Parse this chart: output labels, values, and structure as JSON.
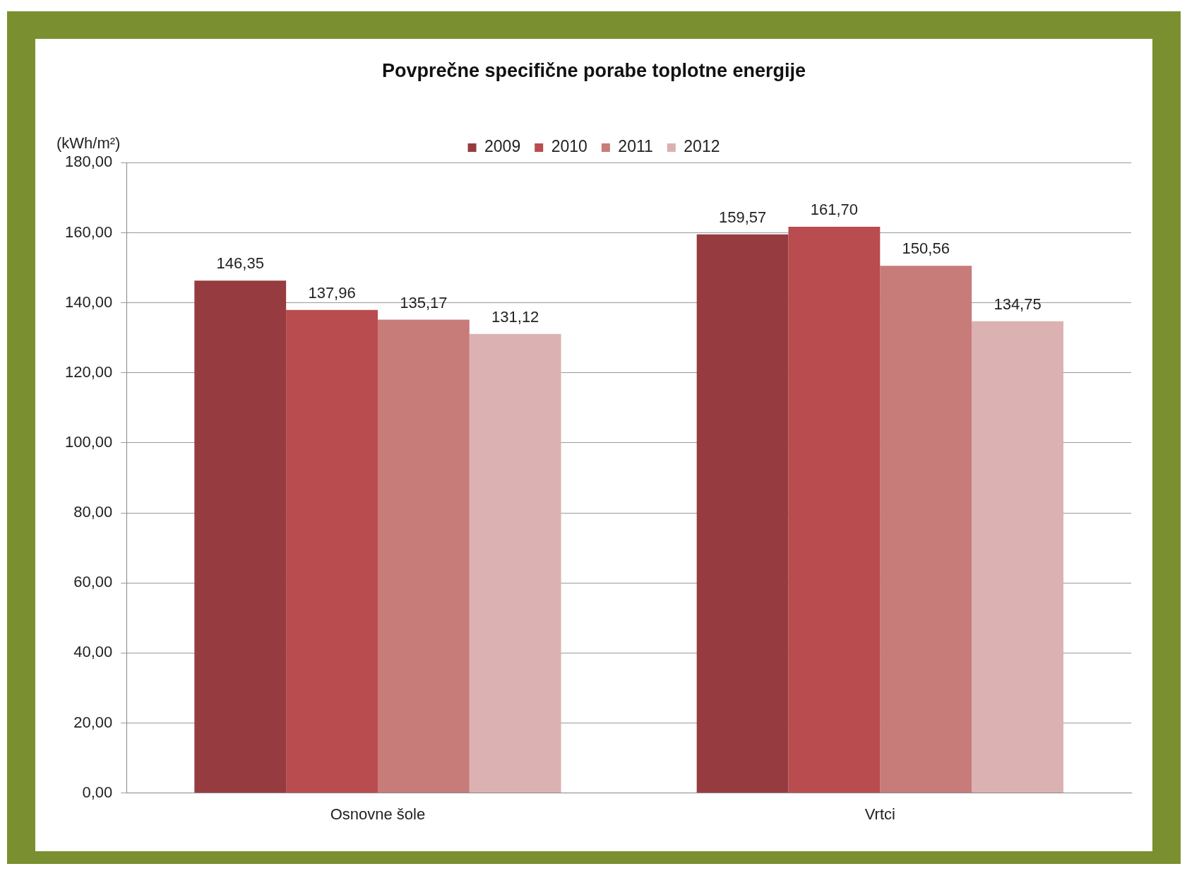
{
  "chart_data": {
    "type": "bar",
    "title": "Povprečne specifične porabe toplotne energije",
    "ylabel": "(kWh/m²)",
    "categories": [
      "Osnovne šole",
      "Vrtci"
    ],
    "series": [
      {
        "name": "2009",
        "color": "#963c40",
        "values": [
          146.35,
          159.57
        ],
        "value_labels": [
          "146,35",
          "159,57"
        ]
      },
      {
        "name": "2010",
        "color": "#b84c4e",
        "values": [
          137.96,
          161.7
        ],
        "value_labels": [
          "137,96",
          "161,70"
        ]
      },
      {
        "name": "2011",
        "color": "#c77c7a",
        "values": [
          135.17,
          150.56
        ],
        "value_labels": [
          "135,17",
          "150,56"
        ]
      },
      {
        "name": "2012",
        "color": "#dbb2b1",
        "values": [
          131.12,
          134.75
        ],
        "value_labels": [
          "131,12",
          "134,75"
        ]
      }
    ],
    "ylim": [
      0,
      180
    ],
    "yticks": [
      {
        "value": 0,
        "label": "0,00"
      },
      {
        "value": 20,
        "label": "20,00"
      },
      {
        "value": 40,
        "label": "40,00"
      },
      {
        "value": 60,
        "label": "60,00"
      },
      {
        "value": 80,
        "label": "80,00"
      },
      {
        "value": 100,
        "label": "100,00"
      },
      {
        "value": 120,
        "label": "120,00"
      },
      {
        "value": 140,
        "label": "140,00"
      },
      {
        "value": 160,
        "label": "160,00"
      },
      {
        "value": 180,
        "label": "180,00"
      }
    ],
    "grid": "y",
    "legend": "top"
  }
}
